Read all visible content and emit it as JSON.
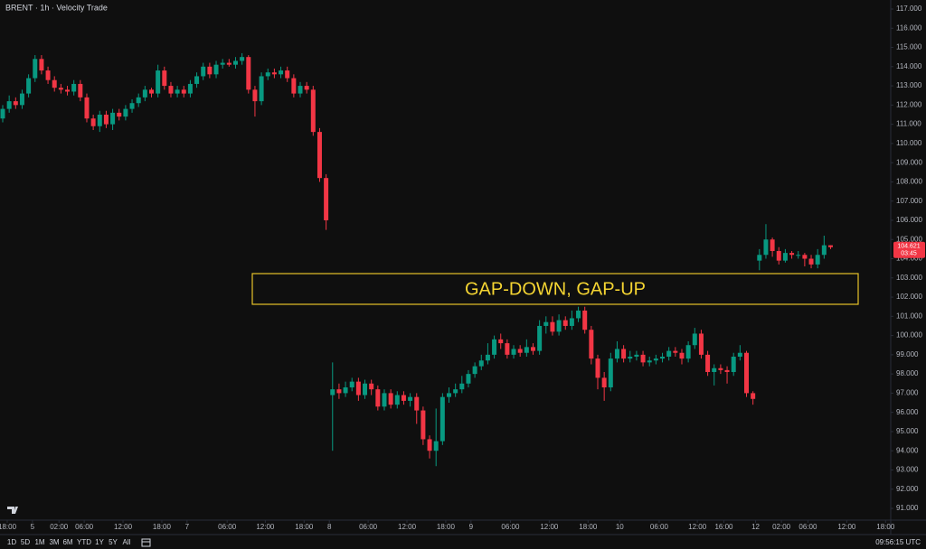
{
  "chart_data": {
    "type": "candlestick",
    "title": "BRENT · 1h · Velocity Trade",
    "annotation": "GAP-DOWN, GAP-UP",
    "up_color": "#089981",
    "down_color": "#f23645",
    "open": [
      111.3,
      111.8,
      112.2,
      112.0,
      112.6,
      113.4,
      114.4,
      113.8,
      113.3,
      112.9,
      112.8,
      112.7,
      113.1,
      112.4,
      111.3,
      110.9,
      111.5,
      111.0,
      111.6,
      111.4,
      111.8,
      112.1,
      112.4,
      112.8,
      112.6,
      113.8,
      113.0,
      112.6,
      112.8,
      112.6,
      113.1,
      113.5,
      114.0,
      113.6,
      114.1,
      114.2,
      114.1,
      114.3,
      114.5,
      112.8,
      112.2,
      113.5,
      113.7,
      113.6,
      113.8,
      113.4,
      112.6,
      113.0,
      112.8,
      110.6,
      108.2,
      96.9,
      97.2,
      97.0,
      97.3,
      97.6,
      96.9,
      97.5,
      97.2,
      96.3,
      97.0,
      96.4,
      96.9,
      96.6,
      96.8,
      96.1,
      94.6,
      94.0,
      94.5,
      96.8,
      97.0,
      97.2,
      97.5,
      98.0,
      98.4,
      98.7,
      99.0,
      99.8,
      99.6,
      99.0,
      99.3,
      99.1,
      99.4,
      99.2,
      100.5,
      100.7,
      100.2,
      100.8,
      100.5,
      100.9,
      101.3,
      100.3,
      98.8,
      97.8,
      97.3,
      98.8,
      99.3,
      98.8,
      98.9,
      99.0,
      98.6,
      98.7,
      98.8,
      98.9,
      99.2,
      99.1,
      98.8,
      99.5,
      100.1,
      99.0,
      98.1,
      98.3,
      98.2,
      98.1,
      98.9,
      99.1,
      97.0,
      103.9,
      104.2,
      105.0,
      104.4,
      103.9,
      104.3,
      104.2,
      104.2,
      104.0,
      103.7,
      104.2,
      104.7
    ],
    "high": [
      112.0,
      112.5,
      112.4,
      112.8,
      113.6,
      114.6,
      114.6,
      114.0,
      113.5,
      113.1,
      113.0,
      113.3,
      113.3,
      112.6,
      111.5,
      111.7,
      111.7,
      111.8,
      111.8,
      112.0,
      112.3,
      112.6,
      113.0,
      112.9,
      114.1,
      114.0,
      113.2,
      113.0,
      113.0,
      113.3,
      113.7,
      114.2,
      114.2,
      114.3,
      114.4,
      114.4,
      114.5,
      114.7,
      114.6,
      113.0,
      113.7,
      113.9,
      113.9,
      114.0,
      114.0,
      113.6,
      113.2,
      113.2,
      113.0,
      110.8,
      108.4,
      98.6,
      97.5,
      97.6,
      97.8,
      97.8,
      97.7,
      97.7,
      97.4,
      97.2,
      97.2,
      97.1,
      97.1,
      97.0,
      97.0,
      96.3,
      94.8,
      96.2,
      97.0,
      97.3,
      97.5,
      97.9,
      98.2,
      98.6,
      99.0,
      99.6,
      100.0,
      100.1,
      99.8,
      99.5,
      99.5,
      99.8,
      99.6,
      100.8,
      101.0,
      101.0,
      101.1,
      101.0,
      101.3,
      101.5,
      101.5,
      100.5,
      99.0,
      98.1,
      99.1,
      99.7,
      99.5,
      99.2,
      99.2,
      99.2,
      98.9,
      99.0,
      99.1,
      99.4,
      99.4,
      99.3,
      99.7,
      100.4,
      100.3,
      99.2,
      98.5,
      98.5,
      98.4,
      99.1,
      99.5,
      99.2,
      97.1,
      104.5,
      105.8,
      105.1,
      104.6,
      104.5,
      104.4,
      104.4,
      104.3,
      104.2,
      104.5,
      105.2,
      104.7
    ],
    "low": [
      111.1,
      111.6,
      111.8,
      111.8,
      112.4,
      113.2,
      113.6,
      113.1,
      112.7,
      112.6,
      112.5,
      112.5,
      112.2,
      111.1,
      110.7,
      110.6,
      110.8,
      110.7,
      111.2,
      111.2,
      111.6,
      111.9,
      112.2,
      112.4,
      112.4,
      112.8,
      112.4,
      112.4,
      112.4,
      112.4,
      112.9,
      113.3,
      113.4,
      113.4,
      113.9,
      114.0,
      113.9,
      114.1,
      112.6,
      111.4,
      112.0,
      113.3,
      113.4,
      113.4,
      113.2,
      112.4,
      112.4,
      112.6,
      110.4,
      108.0,
      105.5,
      94.0,
      96.7,
      96.8,
      97.1,
      96.6,
      96.7,
      96.9,
      96.1,
      96.1,
      96.2,
      96.2,
      96.4,
      96.3,
      95.4,
      94.3,
      93.6,
      93.2,
      94.3,
      96.5,
      96.8,
      97.0,
      97.3,
      97.8,
      98.2,
      98.5,
      98.8,
      99.3,
      98.8,
      98.8,
      98.9,
      98.9,
      99.0,
      99.0,
      100.1,
      100.0,
      100.0,
      100.3,
      100.3,
      100.7,
      100.1,
      98.5,
      97.2,
      96.6,
      97.1,
      98.6,
      98.6,
      98.6,
      98.7,
      98.4,
      98.4,
      98.5,
      98.6,
      98.7,
      98.9,
      98.5,
      98.6,
      99.3,
      98.8,
      97.9,
      97.4,
      98.0,
      97.5,
      97.9,
      98.7,
      96.8,
      96.4,
      103.4,
      104.0,
      104.1,
      103.7,
      103.8,
      104.0,
      104.0,
      103.6,
      103.5,
      103.5,
      104.0,
      104.5
    ],
    "close": [
      111.8,
      112.2,
      112.0,
      112.6,
      113.4,
      114.4,
      113.8,
      113.3,
      112.9,
      112.8,
      112.7,
      113.1,
      112.4,
      111.3,
      110.9,
      111.5,
      111.0,
      111.6,
      111.4,
      111.8,
      112.1,
      112.4,
      112.8,
      112.6,
      113.8,
      113.0,
      112.6,
      112.8,
      112.6,
      113.1,
      113.5,
      114.0,
      113.6,
      114.1,
      114.2,
      114.1,
      114.3,
      114.5,
      112.8,
      112.2,
      113.5,
      113.7,
      113.6,
      113.8,
      113.4,
      112.6,
      113.0,
      112.8,
      110.6,
      108.2,
      106.0,
      97.2,
      97.0,
      97.3,
      97.6,
      96.9,
      97.5,
      97.2,
      96.3,
      97.0,
      96.4,
      96.9,
      96.6,
      96.8,
      96.1,
      94.6,
      94.0,
      94.5,
      96.8,
      97.0,
      97.2,
      97.5,
      98.0,
      98.4,
      98.7,
      99.0,
      99.8,
      99.6,
      99.0,
      99.3,
      99.1,
      99.4,
      99.2,
      100.5,
      100.7,
      100.2,
      100.8,
      100.5,
      100.9,
      101.3,
      100.3,
      98.8,
      97.8,
      97.3,
      98.8,
      99.3,
      98.8,
      98.9,
      99.0,
      98.6,
      98.7,
      98.8,
      98.9,
      99.2,
      99.1,
      98.8,
      99.5,
      100.1,
      99.0,
      98.1,
      98.3,
      98.2,
      98.1,
      98.9,
      99.1,
      97.0,
      96.7,
      104.2,
      105.0,
      104.4,
      103.9,
      104.3,
      104.2,
      104.2,
      104.0,
      103.7,
      104.2,
      104.7,
      104.6
    ],
    "last_price_label": "104.621",
    "countdown": "03:45",
    "xlim": [
      -0.42,
      137.3
    ],
    "xticks": [
      {
        "value": 0.7,
        "label": "18:00"
      },
      {
        "value": 4.6,
        "label": "5"
      },
      {
        "value": 8.7,
        "label": "02:00"
      },
      {
        "value": 12.6,
        "label": "06:00"
      },
      {
        "value": 18.6,
        "label": "12:00"
      },
      {
        "value": 24.6,
        "label": "18:00"
      },
      {
        "value": 28.5,
        "label": "7"
      },
      {
        "value": 34.7,
        "label": "06:00"
      },
      {
        "value": 40.6,
        "label": "12:00"
      },
      {
        "value": 46.6,
        "label": "18:00"
      },
      {
        "value": 50.5,
        "label": "8"
      },
      {
        "value": 56.5,
        "label": "06:00"
      },
      {
        "value": 62.5,
        "label": "12:00"
      },
      {
        "value": 68.5,
        "label": "18:00"
      },
      {
        "value": 72.4,
        "label": "9"
      },
      {
        "value": 78.5,
        "label": "06:00"
      },
      {
        "value": 84.5,
        "label": "12:00"
      },
      {
        "value": 90.5,
        "label": "18:00"
      },
      {
        "value": 95.4,
        "label": "10"
      },
      {
        "value": 101.5,
        "label": "06:00"
      },
      {
        "value": 107.4,
        "label": "12:00"
      },
      {
        "value": 111.5,
        "label": "16:00"
      },
      {
        "value": 116.4,
        "label": "12"
      },
      {
        "value": 120.4,
        "label": "02:00"
      },
      {
        "value": 124.5,
        "label": "06:00"
      },
      {
        "value": 130.5,
        "label": "12:00"
      },
      {
        "value": 136.5,
        "label": "18:00"
      }
    ],
    "ylim": [
      90.39,
      117.47
    ],
    "yticks": [
      {
        "value": 91,
        "label": "91.000"
      },
      {
        "value": 92,
        "label": "92.000"
      },
      {
        "value": 93,
        "label": "93.000"
      },
      {
        "value": 94,
        "label": "94.000"
      },
      {
        "value": 95,
        "label": "95.000"
      },
      {
        "value": 96,
        "label": "96.000"
      },
      {
        "value": 97,
        "label": "97.000"
      },
      {
        "value": 98,
        "label": "98.000"
      },
      {
        "value": 99,
        "label": "99.000"
      },
      {
        "value": 100,
        "label": "100.000"
      },
      {
        "value": 101,
        "label": "101.000"
      },
      {
        "value": 102,
        "label": "102.000"
      },
      {
        "value": 103,
        "label": "103.000"
      },
      {
        "value": 104,
        "label": "104.000"
      },
      {
        "value": 105,
        "label": "105.000"
      },
      {
        "value": 106,
        "label": "106.000"
      },
      {
        "value": 107,
        "label": "107.000"
      },
      {
        "value": 108,
        "label": "108.000"
      },
      {
        "value": 109,
        "label": "109.000"
      },
      {
        "value": 110,
        "label": "110.000"
      },
      {
        "value": 111,
        "label": "111.000"
      },
      {
        "value": 112,
        "label": "112.000"
      },
      {
        "value": 113,
        "label": "113.000"
      },
      {
        "value": 114,
        "label": "114.000"
      },
      {
        "value": 115,
        "label": "115.000"
      },
      {
        "value": 116,
        "label": "116.000"
      },
      {
        "value": 117,
        "label": "117.000"
      }
    ]
  },
  "toolbar": {
    "ranges": [
      "1D",
      "5D",
      "1M",
      "3M",
      "6M",
      "YTD",
      "1Y",
      "5Y",
      "All"
    ],
    "clock": "09:56:15 UTC"
  }
}
